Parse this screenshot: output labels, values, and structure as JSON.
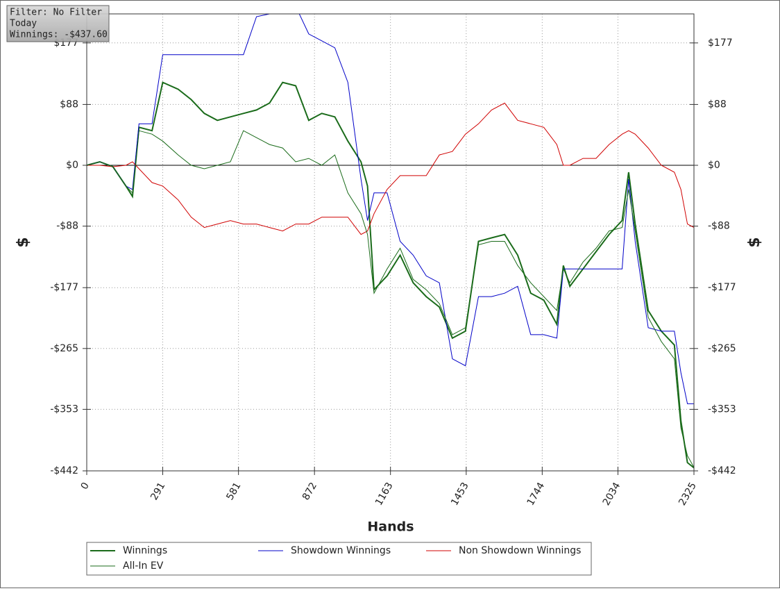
{
  "chart_data": {
    "type": "line",
    "x_label": "Hands",
    "y_label": "$",
    "y2_label": "$",
    "x": [
      0,
      50,
      100,
      150,
      175,
      200,
      250,
      291,
      350,
      400,
      450,
      500,
      550,
      600,
      650,
      700,
      750,
      800,
      850,
      900,
      950,
      1000,
      1050,
      1075,
      1100,
      1150,
      1200,
      1250,
      1300,
      1350,
      1400,
      1450,
      1500,
      1550,
      1600,
      1650,
      1700,
      1750,
      1800,
      1825,
      1850,
      1900,
      1950,
      2000,
      2050,
      2075,
      2100,
      2150,
      2200,
      2250,
      2275,
      2300,
      2325
    ],
    "series": [
      {
        "name": "Winnings",
        "color": "#1a6b1a",
        "values": [
          0,
          5,
          -2,
          -30,
          -45,
          55,
          50,
          120,
          110,
          95,
          75,
          65,
          70,
          75,
          80,
          90,
          120,
          115,
          65,
          75,
          70,
          35,
          5,
          -30,
          -180,
          -160,
          -130,
          -170,
          -190,
          -205,
          -250,
          -240,
          -110,
          -105,
          -100,
          -130,
          -185,
          -195,
          -230,
          -145,
          -175,
          -150,
          -125,
          -100,
          -80,
          -10,
          -85,
          -210,
          -240,
          -260,
          -370,
          -430,
          -437.6
        ]
      },
      {
        "name": "Showdown Winnings",
        "color": "#0000c8",
        "values": [
          0,
          5,
          -2,
          -30,
          -35,
          60,
          60,
          160,
          160,
          160,
          160,
          160,
          160,
          160,
          215,
          219,
          230,
          230,
          190,
          180,
          170,
          120,
          -20,
          -80,
          -40,
          -40,
          -110,
          -130,
          -160,
          -170,
          -280,
          -290,
          -190,
          -190,
          -185,
          -175,
          -245,
          -245,
          -250,
          -150,
          -150,
          -150,
          -150,
          -150,
          -150,
          -20,
          -110,
          -235,
          -240,
          -240,
          -300,
          -345,
          -345
        ]
      },
      {
        "name": "Non Showdown Winnings",
        "color": "#d00000",
        "values": [
          0,
          0,
          -2,
          0,
          5,
          -5,
          -25,
          -30,
          -50,
          -75,
          -90,
          -85,
          -80,
          -85,
          -85,
          -90,
          -95,
          -85,
          -85,
          -75,
          -75,
          -75,
          -100,
          -95,
          -70,
          -35,
          -15,
          -15,
          -15,
          15,
          20,
          45,
          60,
          80,
          90,
          65,
          60,
          55,
          30,
          0,
          0,
          10,
          10,
          30,
          45,
          50,
          45,
          25,
          0,
          -10,
          -35,
          -85,
          -90
        ]
      },
      {
        "name": "All-In EV",
        "color": "#1a6b1a",
        "values": [
          0,
          5,
          -2,
          -30,
          -40,
          50,
          45,
          35,
          15,
          0,
          -5,
          0,
          5,
          50,
          40,
          30,
          25,
          5,
          10,
          0,
          15,
          -40,
          -70,
          -100,
          -185,
          -150,
          -120,
          -165,
          -180,
          -200,
          -245,
          -235,
          -115,
          -110,
          -110,
          -145,
          -170,
          -190,
          -210,
          -150,
          -170,
          -140,
          -120,
          -95,
          -90,
          -35,
          -95,
          -220,
          -255,
          -280,
          -380,
          -420,
          -437
        ]
      }
    ],
    "xlim": [
      0,
      2325
    ],
    "xticks": [
      0,
      291,
      581,
      872,
      1163,
      1453,
      1744,
      2034,
      2325
    ],
    "ylim": [
      -442,
      219
    ],
    "yticks": [
      {
        "value": -442,
        "label": "-$442"
      },
      {
        "value": -353,
        "label": "-$353"
      },
      {
        "value": -265,
        "label": "-$265"
      },
      {
        "value": -177,
        "label": "-$177"
      },
      {
        "value": -88,
        "label": "-$88"
      },
      {
        "value": 0,
        "label": "$0"
      },
      {
        "value": 88,
        "label": "$88"
      },
      {
        "value": 177,
        "label": "$177"
      }
    ],
    "grid": true,
    "legend": "bottom"
  },
  "overlay": {
    "filter": "Filter: No Filter",
    "period": "Today",
    "winnings": "Winnings: -$437.60"
  }
}
